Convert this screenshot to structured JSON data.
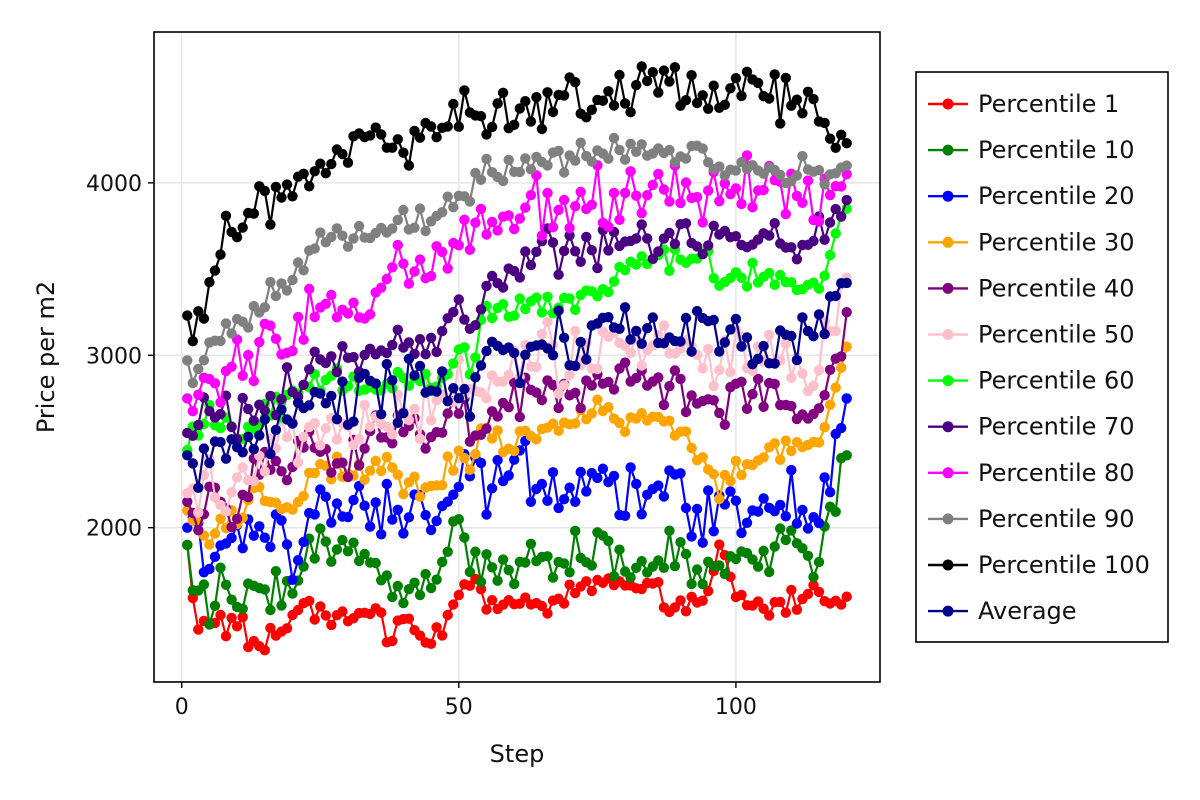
{
  "chart_data": {
    "type": "line",
    "title": "",
    "xlabel": "Step",
    "ylabel": "Price per m2",
    "xlim": [
      -5,
      126
    ],
    "ylim": [
      1105,
      4875
    ],
    "xticks": [
      0,
      50,
      100
    ],
    "yticks": [
      2000,
      3000,
      4000
    ],
    "xtick_labels": [
      "0",
      "50",
      "100"
    ],
    "ytick_labels": [
      "2000",
      "3000",
      "4000"
    ],
    "grid": true,
    "markers": true,
    "legend_position": "outside-right",
    "series_anchors": [
      {
        "name": "Percentile 1",
        "color": "#ff0000",
        "x": [
          1,
          2,
          3,
          5,
          8,
          10,
          14,
          18,
          20,
          23,
          25,
          30,
          35,
          37,
          40,
          42,
          45,
          50,
          52,
          55,
          60,
          65,
          70,
          75,
          80,
          85,
          90,
          95,
          97,
          100,
          105,
          110,
          115,
          120
        ],
        "values": [
          1900,
          1600,
          1400,
          1500,
          1420,
          1450,
          1280,
          1420,
          1480,
          1600,
          1450,
          1500,
          1550,
          1350,
          1500,
          1380,
          1300,
          1650,
          1730,
          1550,
          1550,
          1550,
          1600,
          1700,
          1650,
          1600,
          1570,
          1560,
          1880,
          1600,
          1520,
          1580,
          1620,
          1600
        ]
      },
      {
        "name": "Percentile 10",
        "color": "#008000",
        "x": [
          1,
          2,
          3,
          5,
          8,
          10,
          14,
          18,
          20,
          23,
          25,
          30,
          35,
          37,
          40,
          42,
          45,
          50,
          52,
          55,
          60,
          65,
          70,
          75,
          80,
          85,
          90,
          95,
          97,
          100,
          105,
          110,
          115,
          120
        ],
        "values": [
          1900,
          1650,
          1600,
          1500,
          1700,
          1500,
          1700,
          1650,
          1600,
          1900,
          1880,
          1850,
          1820,
          1680,
          1600,
          1680,
          1650,
          2150,
          1800,
          1750,
          1750,
          1850,
          1850,
          1900,
          1700,
          1800,
          1850,
          1700,
          1750,
          1800,
          1850,
          1950,
          1820,
          2420
        ]
      },
      {
        "name": "Percentile 20",
        "color": "#0000ff",
        "x": [
          1,
          2,
          3,
          5,
          8,
          10,
          14,
          18,
          20,
          23,
          25,
          30,
          35,
          37,
          40,
          42,
          45,
          50,
          52,
          55,
          60,
          65,
          70,
          75,
          80,
          85,
          90,
          95,
          97,
          100,
          105,
          110,
          115,
          120
        ],
        "values": [
          2000,
          2080,
          1950,
          1800,
          1880,
          1850,
          2000,
          2050,
          1680,
          2150,
          2120,
          2150,
          1950,
          2100,
          2000,
          2250,
          2050,
          2200,
          2300,
          2200,
          2400,
          2300,
          2250,
          2300,
          2200,
          2250,
          2150,
          2100,
          2150,
          2100,
          2150,
          2150,
          2100,
          2750
        ]
      },
      {
        "name": "Percentile 30",
        "color": "#ffa500",
        "x": [
          1,
          2,
          3,
          5,
          8,
          10,
          14,
          18,
          20,
          23,
          25,
          30,
          35,
          37,
          40,
          42,
          45,
          50,
          52,
          55,
          60,
          65,
          70,
          75,
          80,
          85,
          90,
          95,
          97,
          100,
          105,
          110,
          115,
          120
        ],
        "values": [
          2100,
          2050,
          2000,
          1900,
          2050,
          2000,
          2200,
          2150,
          2100,
          2300,
          2350,
          2300,
          2300,
          2400,
          2200,
          2250,
          2200,
          2450,
          2400,
          2550,
          2500,
          2600,
          2550,
          2700,
          2600,
          2650,
          2550,
          2300,
          2250,
          2350,
          2400,
          2500,
          2450,
          3050
        ]
      },
      {
        "name": "Percentile 40",
        "color": "#800080",
        "x": [
          1,
          2,
          3,
          5,
          8,
          10,
          14,
          18,
          20,
          23,
          25,
          30,
          35,
          37,
          40,
          42,
          45,
          50,
          52,
          55,
          60,
          65,
          70,
          75,
          80,
          85,
          90,
          95,
          97,
          100,
          105,
          110,
          115,
          120
        ],
        "values": [
          2150,
          2100,
          2050,
          2200,
          2150,
          2100,
          2350,
          2300,
          2350,
          2450,
          2450,
          2350,
          2500,
          2600,
          2550,
          2600,
          2500,
          2700,
          2550,
          2550,
          2700,
          2800,
          2750,
          2900,
          2850,
          2850,
          2800,
          2700,
          2650,
          2750,
          2850,
          2700,
          2650,
          3250
        ]
      },
      {
        "name": "Percentile 50",
        "color": "#ffc0cb",
        "x": [
          1,
          2,
          3,
          5,
          8,
          10,
          14,
          18,
          20,
          23,
          25,
          30,
          35,
          37,
          40,
          42,
          45,
          50,
          52,
          55,
          60,
          65,
          70,
          75,
          80,
          85,
          90,
          95,
          97,
          100,
          105,
          110,
          115,
          120
        ],
        "values": [
          2200,
          2250,
          2150,
          2300,
          2300,
          2250,
          2400,
          2450,
          2400,
          2550,
          2550,
          2550,
          2650,
          2600,
          2650,
          2700,
          2650,
          2850,
          2800,
          2750,
          2950,
          3000,
          2950,
          3050,
          3100,
          3050,
          3100,
          3000,
          2900,
          3000,
          2950,
          2950,
          2900,
          3450
        ]
      },
      {
        "name": "Percentile 60",
        "color": "#00ff00",
        "x": [
          1,
          2,
          3,
          5,
          8,
          10,
          14,
          18,
          20,
          23,
          25,
          30,
          35,
          37,
          40,
          42,
          45,
          50,
          52,
          55,
          60,
          65,
          70,
          75,
          80,
          85,
          90,
          95,
          97,
          100,
          105,
          110,
          115,
          120
        ],
        "values": [
          2450,
          2500,
          2550,
          2650,
          2600,
          2550,
          2650,
          2700,
          2800,
          2850,
          2850,
          2850,
          2800,
          2800,
          2850,
          2900,
          2850,
          3000,
          2950,
          3300,
          3250,
          3300,
          3300,
          3350,
          3500,
          3550,
          3550,
          3600,
          3400,
          3500,
          3450,
          3400,
          3400,
          3850
        ]
      },
      {
        "name": "Percentile 70",
        "color": "#4b0082",
        "x": [
          1,
          2,
          3,
          5,
          8,
          10,
          14,
          18,
          20,
          23,
          25,
          30,
          35,
          37,
          40,
          42,
          45,
          50,
          52,
          55,
          60,
          65,
          70,
          75,
          80,
          85,
          90,
          95,
          97,
          100,
          105,
          110,
          115,
          120
        ],
        "values": [
          2550,
          2550,
          2600,
          2700,
          2650,
          2650,
          2750,
          2750,
          2800,
          2900,
          2950,
          2950,
          3000,
          3050,
          3000,
          3100,
          3050,
          3300,
          3200,
          3450,
          3450,
          3600,
          3550,
          3600,
          3650,
          3700,
          3700,
          3650,
          3700,
          3700,
          3700,
          3650,
          3700,
          3900
        ]
      },
      {
        "name": "Percentile 80",
        "color": "#ff00ff",
        "x": [
          1,
          2,
          3,
          5,
          8,
          10,
          14,
          18,
          20,
          23,
          25,
          30,
          35,
          37,
          40,
          42,
          45,
          50,
          52,
          55,
          60,
          65,
          70,
          75,
          80,
          85,
          90,
          95,
          97,
          100,
          105,
          110,
          115,
          120
        ],
        "values": [
          2750,
          2700,
          2750,
          2850,
          2900,
          2950,
          3050,
          3100,
          3050,
          3250,
          3300,
          3300,
          3350,
          3400,
          3450,
          3450,
          3450,
          3650,
          3600,
          3800,
          3800,
          3850,
          3850,
          3900,
          3900,
          3950,
          3950,
          4000,
          3900,
          3950,
          3950,
          3950,
          3900,
          4050
        ]
      },
      {
        "name": "Percentile 90",
        "color": "#808080",
        "x": [
          1,
          2,
          3,
          5,
          8,
          10,
          14,
          18,
          20,
          23,
          25,
          30,
          35,
          37,
          40,
          42,
          45,
          50,
          52,
          55,
          60,
          65,
          70,
          75,
          80,
          85,
          90,
          95,
          97,
          100,
          105,
          110,
          115,
          120
        ],
        "values": [
          2970,
          2850,
          2900,
          3050,
          3150,
          3200,
          3300,
          3400,
          3450,
          3600,
          3650,
          3700,
          3700,
          3750,
          3800,
          3750,
          3800,
          3950,
          3950,
          4100,
          4050,
          4100,
          4150,
          4150,
          4200,
          4150,
          4150,
          4150,
          4100,
          4050,
          4050,
          4100,
          4050,
          4100
        ]
      },
      {
        "name": "Percentile 100",
        "color": "#000000",
        "x": [
          1,
          2,
          3,
          5,
          8,
          10,
          14,
          18,
          20,
          23,
          25,
          30,
          35,
          37,
          40,
          42,
          45,
          50,
          52,
          55,
          60,
          65,
          70,
          75,
          80,
          85,
          90,
          95,
          97,
          100,
          105,
          110,
          115,
          120
        ],
        "values": [
          3230,
          3100,
          3200,
          3350,
          3700,
          3750,
          3850,
          3950,
          3950,
          4050,
          4050,
          4150,
          4300,
          4200,
          4250,
          4200,
          4250,
          4400,
          4450,
          4400,
          4400,
          4450,
          4500,
          4500,
          4550,
          4600,
          4550,
          4500,
          4450,
          4550,
          4500,
          4500,
          4350,
          4230
        ]
      },
      {
        "name": "Average",
        "color": "#00008b",
        "x": [
          1,
          2,
          3,
          5,
          8,
          10,
          14,
          18,
          20,
          23,
          25,
          30,
          35,
          37,
          40,
          42,
          45,
          50,
          52,
          55,
          60,
          65,
          70,
          75,
          80,
          85,
          90,
          95,
          97,
          100,
          105,
          110,
          115,
          120
        ],
        "values": [
          2420,
          2400,
          2350,
          2450,
          2400,
          2450,
          2500,
          2600,
          2650,
          2700,
          2750,
          2750,
          2800,
          2850,
          2750,
          2800,
          2750,
          2900,
          2850,
          3000,
          3000,
          3050,
          3100,
          3100,
          3150,
          3150,
          3150,
          3100,
          3050,
          3100,
          3050,
          3050,
          3050,
          3420
        ]
      }
    ]
  }
}
